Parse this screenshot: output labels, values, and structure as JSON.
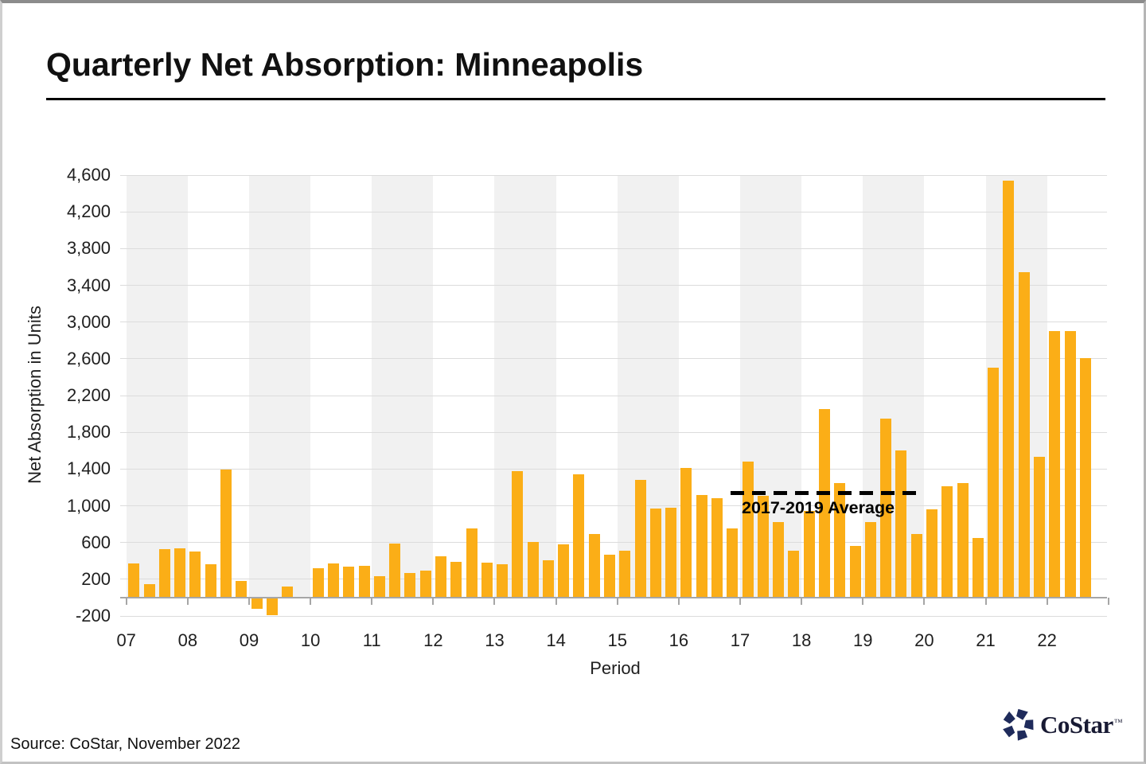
{
  "title": "Quarterly Net Absorption: Minneapolis",
  "source": "Source: CoStar, November 2022",
  "logo": {
    "text": "CoStar",
    "tm": "™"
  },
  "chart_data": {
    "type": "bar",
    "title": "Quarterly Net Absorption: Minneapolis",
    "xlabel": "Period",
    "ylabel": "Net Absorption in Units",
    "ylim": [
      -200,
      4600
    ],
    "ytick_step": 400,
    "ytick_values": [
      4600,
      4200,
      3800,
      3400,
      3000,
      2600,
      2200,
      1800,
      1400,
      1000,
      600,
      200,
      -200
    ],
    "ytick_labels": [
      "4,600",
      "4,200",
      "3,800",
      "3,400",
      "3,000",
      "2,600",
      "2,200",
      "1,800",
      "1,400",
      "1,000",
      "600",
      "200",
      "-200"
    ],
    "grid": true,
    "legend": false,
    "years": [
      {
        "label": "07",
        "values": [
          370,
          150,
          530,
          540
        ]
      },
      {
        "label": "08",
        "values": [
          500,
          360,
          1390,
          180
        ]
      },
      {
        "label": "09",
        "values": [
          -120,
          -190,
          120,
          0
        ]
      },
      {
        "label": "10",
        "values": [
          320,
          370,
          340,
          350
        ]
      },
      {
        "label": "11",
        "values": [
          230,
          590,
          270,
          290
        ]
      },
      {
        "label": "12",
        "values": [
          450,
          390,
          750,
          380
        ]
      },
      {
        "label": "13",
        "values": [
          360,
          1380,
          610,
          410
        ]
      },
      {
        "label": "14",
        "values": [
          580,
          1340,
          690,
          470
        ]
      },
      {
        "label": "15",
        "values": [
          510,
          1280,
          970,
          980
        ]
      },
      {
        "label": "16",
        "values": [
          1410,
          1120,
          1080,
          750
        ]
      },
      {
        "label": "17",
        "values": [
          1480,
          1110,
          820,
          510
        ]
      },
      {
        "label": "18",
        "values": [
          940,
          2050,
          1250,
          560
        ]
      },
      {
        "label": "19",
        "values": [
          820,
          1950,
          1600,
          690
        ]
      },
      {
        "label": "20",
        "values": [
          960,
          1210,
          1250,
          650
        ]
      },
      {
        "label": "21",
        "values": [
          2500,
          4540,
          3540,
          1530
        ]
      },
      {
        "label": "22",
        "values": [
          2900,
          2900,
          2610
        ]
      }
    ],
    "average_line": {
      "label": "2017-2019 Average",
      "value": 1140,
      "start_year": "17",
      "end_year": "19"
    },
    "colors": {
      "bar": "#FBAE17",
      "band": "#F1F1F1",
      "gridline": "#DCDCDC",
      "axis": "#A6A6A6",
      "average_line": "#000000",
      "logo_navy": "#1F2B5B"
    }
  }
}
